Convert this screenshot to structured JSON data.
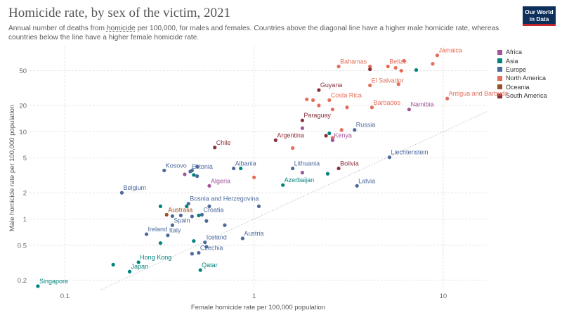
{
  "title": "Homicide rate, by sex of the victim, 2021",
  "subtitle_before": "Annual number of deaths from ",
  "subtitle_link": "homicide",
  "subtitle_after": " per 100,000, for males and females. Countries above the diagonal line have a higher male homicide rate, whereas countries below the line have a higher female homicide rate.",
  "logo": {
    "line1": "Our World",
    "line2": "in Data"
  },
  "chart_data": {
    "type": "scatter",
    "xlabel": "Female homicide rate per 100,000 population",
    "ylabel": "Male homicide rate per 100,000 population",
    "xscale": "log",
    "yscale": "log",
    "xlim": [
      0.065,
      17
    ],
    "ylim": [
      0.155,
      95
    ],
    "xticks": [
      {
        "v": 0.1,
        "label": "0.1"
      },
      {
        "v": 1,
        "label": "1"
      },
      {
        "v": 10,
        "label": "10"
      }
    ],
    "yticks": [
      {
        "v": 0.2,
        "label": "0.2"
      },
      {
        "v": 0.5,
        "label": "0.5"
      },
      {
        "v": 1,
        "label": "1"
      },
      {
        "v": 2,
        "label": "2"
      },
      {
        "v": 5,
        "label": "5"
      },
      {
        "v": 10,
        "label": "10"
      },
      {
        "v": 20,
        "label": "20"
      },
      {
        "v": 50,
        "label": "50"
      }
    ],
    "grid": true,
    "diagonal": true,
    "legend_position": "right",
    "legend": [
      {
        "name": "Africa",
        "color": "#a2559c"
      },
      {
        "name": "Asia",
        "color": "#00847e"
      },
      {
        "name": "Europe",
        "color": "#4c6a9c"
      },
      {
        "name": "North America",
        "color": "#e56e5a"
      },
      {
        "name": "Oceania",
        "color": "#9a5129"
      },
      {
        "name": "South America",
        "color": "#883039"
      }
    ],
    "points": [
      {
        "label": "Jamaica",
        "x": 9.3,
        "y": 75,
        "region": "North America"
      },
      {
        "label": "",
        "x": 8.8,
        "y": 60,
        "region": "North America"
      },
      {
        "label": "Bahamas",
        "x": 2.8,
        "y": 56,
        "region": "North America"
      },
      {
        "label": "Belize",
        "x": 5.1,
        "y": 56,
        "region": "North America"
      },
      {
        "label": "",
        "x": 6.2,
        "y": 65,
        "region": "North America"
      },
      {
        "label": "",
        "x": 4.1,
        "y": 56,
        "region": "North America"
      },
      {
        "label": "",
        "x": 4.1,
        "y": 52,
        "region": "South America"
      },
      {
        "label": "",
        "x": 5.6,
        "y": 54,
        "region": "North America"
      },
      {
        "label": "",
        "x": 6.0,
        "y": 50,
        "region": "North America"
      },
      {
        "label": "",
        "x": 7.2,
        "y": 51,
        "region": "Asia"
      },
      {
        "label": "El Salvador",
        "x": 4.1,
        "y": 34,
        "region": "North America"
      },
      {
        "label": "",
        "x": 5.8,
        "y": 35,
        "region": "North America"
      },
      {
        "label": "Guyana",
        "x": 2.2,
        "y": 30,
        "region": "South America"
      },
      {
        "label": "Antigua and Barbuda",
        "x": 10.5,
        "y": 24,
        "region": "North America"
      },
      {
        "label": "",
        "x": 1.9,
        "y": 23.5,
        "region": "North America"
      },
      {
        "label": "",
        "x": 2.05,
        "y": 23,
        "region": "North America"
      },
      {
        "label": "Costa Rica",
        "x": 2.5,
        "y": 23,
        "region": "North America"
      },
      {
        "label": "",
        "x": 2.2,
        "y": 20,
        "region": "North America"
      },
      {
        "label": "",
        "x": 2.6,
        "y": 18,
        "region": "North America"
      },
      {
        "label": "Barbados",
        "x": 4.2,
        "y": 19,
        "region": "North America"
      },
      {
        "label": "",
        "x": 3.1,
        "y": 19,
        "region": "North America"
      },
      {
        "label": "Namibia",
        "x": 6.6,
        "y": 18,
        "region": "Africa"
      },
      {
        "label": "Paraguay",
        "x": 1.8,
        "y": 13.5,
        "region": "South America"
      },
      {
        "label": "",
        "x": 1.8,
        "y": 11,
        "region": "Africa"
      },
      {
        "label": "Russia",
        "x": 3.4,
        "y": 10.5,
        "region": "Europe"
      },
      {
        "label": "",
        "x": 2.9,
        "y": 10.5,
        "region": "North America"
      },
      {
        "label": "",
        "x": 2.5,
        "y": 9.6,
        "region": "Asia"
      },
      {
        "label": "Argentina",
        "x": 1.3,
        "y": 8.0,
        "region": "South America"
      },
      {
        "label": "",
        "x": 2.4,
        "y": 9.0,
        "region": "South America"
      },
      {
        "label": "",
        "x": 2.6,
        "y": 8.5,
        "region": "North America"
      },
      {
        "label": "Kenya",
        "x": 2.6,
        "y": 8.0,
        "region": "Africa"
      },
      {
        "label": "",
        "x": 1.6,
        "y": 6.5,
        "region": "North America"
      },
      {
        "label": "Chile",
        "x": 0.62,
        "y": 6.6,
        "region": "South America"
      },
      {
        "label": "Liechtenstein",
        "x": 5.2,
        "y": 5.1,
        "region": "Europe"
      },
      {
        "label": "Kosovo",
        "x": 0.335,
        "y": 3.6,
        "region": "Europe"
      },
      {
        "label": "Estonia",
        "x": 0.46,
        "y": 3.5,
        "region": "Europe"
      },
      {
        "label": "",
        "x": 0.43,
        "y": 3.25,
        "region": "Africa"
      },
      {
        "label": "",
        "x": 0.47,
        "y": 3.6,
        "region": "Europe"
      },
      {
        "label": "",
        "x": 0.48,
        "y": 3.2,
        "region": "Asia"
      },
      {
        "label": "",
        "x": 0.5,
        "y": 4.0,
        "region": "Europe"
      },
      {
        "label": "",
        "x": 0.5,
        "y": 3.1,
        "region": "Europe"
      },
      {
        "label": "Albania",
        "x": 0.78,
        "y": 3.8,
        "region": "Europe"
      },
      {
        "label": "",
        "x": 0.85,
        "y": 3.8,
        "region": "Asia"
      },
      {
        "label": "",
        "x": 1.0,
        "y": 3.0,
        "region": "North America"
      },
      {
        "label": "Lithuania",
        "x": 1.6,
        "y": 3.8,
        "region": "Europe"
      },
      {
        "label": "",
        "x": 1.8,
        "y": 3.4,
        "region": "Africa"
      },
      {
        "label": "Bolivia",
        "x": 2.8,
        "y": 3.8,
        "region": "South America"
      },
      {
        "label": "",
        "x": 2.45,
        "y": 3.3,
        "region": "Asia"
      },
      {
        "label": "Algeria",
        "x": 0.58,
        "y": 2.4,
        "region": "Africa"
      },
      {
        "label": "Azerbaijan",
        "x": 1.42,
        "y": 2.45,
        "region": "Asia"
      },
      {
        "label": "Latvia",
        "x": 3.5,
        "y": 2.4,
        "region": "Europe"
      },
      {
        "label": "Belgium",
        "x": 0.2,
        "y": 2.0,
        "region": "Europe"
      },
      {
        "label": "Bosnia and Herzegovina",
        "x": 0.45,
        "y": 1.5,
        "region": "Europe"
      },
      {
        "label": "",
        "x": 0.32,
        "y": 1.4,
        "region": "Asia"
      },
      {
        "label": "",
        "x": 0.44,
        "y": 1.4,
        "region": "Asia"
      },
      {
        "label": "",
        "x": 0.58,
        "y": 1.4,
        "region": "Europe"
      },
      {
        "label": "",
        "x": 1.06,
        "y": 1.4,
        "region": "Europe"
      },
      {
        "label": "Australia",
        "x": 0.345,
        "y": 1.12,
        "region": "Oceania"
      },
      {
        "label": "",
        "x": 0.37,
        "y": 1.08,
        "region": "Europe"
      },
      {
        "label": "",
        "x": 0.41,
        "y": 1.1,
        "region": "Europe"
      },
      {
        "label": "",
        "x": 0.47,
        "y": 1.07,
        "region": "Europe"
      },
      {
        "label": "Croatia",
        "x": 0.53,
        "y": 1.12,
        "region": "Europe"
      },
      {
        "label": "",
        "x": 0.51,
        "y": 1.1,
        "region": "Asia"
      },
      {
        "label": "",
        "x": 0.56,
        "y": 0.95,
        "region": "Europe"
      },
      {
        "label": "",
        "x": 0.7,
        "y": 0.85,
        "region": "Europe"
      },
      {
        "label": "Spain",
        "x": 0.37,
        "y": 0.85,
        "region": "Europe"
      },
      {
        "label": "Ireland",
        "x": 0.27,
        "y": 0.67,
        "region": "Europe"
      },
      {
        "label": "Italy",
        "x": 0.35,
        "y": 0.65,
        "region": "Europe"
      },
      {
        "label": "Austria",
        "x": 0.87,
        "y": 0.6,
        "region": "Europe"
      },
      {
        "label": "",
        "x": 0.32,
        "y": 0.53,
        "region": "Asia"
      },
      {
        "label": "",
        "x": 0.48,
        "y": 0.56,
        "region": "Asia"
      },
      {
        "label": "Iceland",
        "x": 0.55,
        "y": 0.54,
        "region": "Europe"
      },
      {
        "label": "",
        "x": 0.56,
        "y": 0.48,
        "region": "Europe"
      },
      {
        "label": "Czechia",
        "x": 0.51,
        "y": 0.41,
        "region": "Europe"
      },
      {
        "label": "",
        "x": 0.47,
        "y": 0.4,
        "region": "Europe"
      },
      {
        "label": "Hong Kong",
        "x": 0.245,
        "y": 0.32,
        "region": "Asia"
      },
      {
        "label": "",
        "x": 0.18,
        "y": 0.3,
        "region": "Asia"
      },
      {
        "label": "Japan",
        "x": 0.22,
        "y": 0.25,
        "region": "Asia"
      },
      {
        "label": "Qatar",
        "x": 0.52,
        "y": 0.26,
        "region": "Asia"
      },
      {
        "label": "Singapore",
        "x": 0.072,
        "y": 0.17,
        "region": "Asia"
      }
    ]
  }
}
